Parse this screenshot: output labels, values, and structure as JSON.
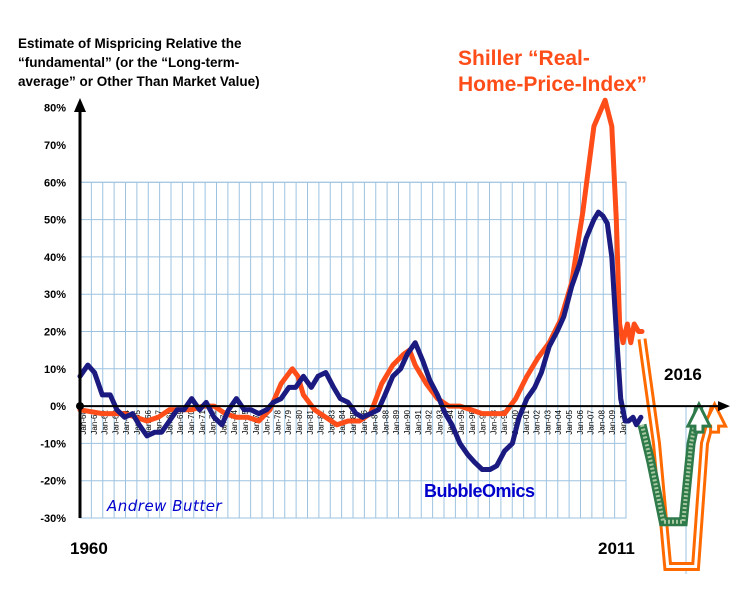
{
  "chart_data": {
    "type": "line",
    "title": "",
    "ylabel_lines": [
      "Estimate of Mispricing Relative the",
      "“fundamental” (or the “Long-term-",
      "average” or Other Than Market Value)"
    ],
    "xlabel": "",
    "x_start_label": "1960",
    "x_end_label": "2011",
    "forecast_label": "2016",
    "ylim": [
      -30,
      80
    ],
    "grid_max": 60,
    "y_ticks": [
      -30,
      -20,
      -10,
      0,
      10,
      20,
      30,
      40,
      50,
      60,
      70,
      80
    ],
    "y_tick_labels": [
      "-30%",
      "-20%",
      "-10%",
      "0%",
      "10%",
      "20%",
      "30%",
      "40%",
      "50%",
      "60%",
      "70%",
      "80%"
    ],
    "x_tick_labels": [
      "Jan-60",
      "Jan-61",
      "Jan-62",
      "Jan-63",
      "Jan-64",
      "Jan-65",
      "Jan-66",
      "Jan-67",
      "Jan-68",
      "Jan-69",
      "Jan-70",
      "Jan-71",
      "Jan-72",
      "Jan-73",
      "Jan-74",
      "Jan-75",
      "Jan-76",
      "Jan-77",
      "Jan-78",
      "Jan-79",
      "Jan-80",
      "Jan-81",
      "Jan-82",
      "Jan-83",
      "Jan-84",
      "Jan-85",
      "Jan-86",
      "Jan-87",
      "Jan-88",
      "Jan-89",
      "Jan-90",
      "Jan-91",
      "Jan-92",
      "Jan-93",
      "Jan-94",
      "Jan-95",
      "Jan-96",
      "Jan-97",
      "Jan-98",
      "Jan-99",
      "Jan-00",
      "Jan-01",
      "Jan-02",
      "Jan-03",
      "Jan-04",
      "Jan-05",
      "Jan-06",
      "Jan-07",
      "Jan-08",
      "Jan-09",
      "Jan-10"
    ],
    "xlim": [
      1960,
      2018
    ],
    "series": [
      {
        "name": "Shiller “Real-Home-Price-Index”",
        "color": "#ff4d1a",
        "x": [
          1960,
          1962,
          1964,
          1965,
          1966,
          1967,
          1968,
          1969,
          1970,
          1971,
          1972,
          1973,
          1974,
          1975,
          1976,
          1977,
          1978,
          1979,
          1979.5,
          1980,
          1981,
          1982,
          1983,
          1984,
          1985,
          1986,
          1987,
          1988,
          1989,
          1989.5,
          1990,
          1991,
          1992,
          1993,
          1994,
          1995,
          1996,
          1997,
          1998,
          1999,
          2000,
          2001,
          2002,
          2003,
          2004,
          2005,
          2006,
          2007,
          2007.6,
          2008,
          2008.3,
          2008.6,
          2009,
          2009.3,
          2009.6,
          2010,
          2010.3
        ],
        "y": [
          -1,
          -2,
          -2,
          -3,
          -4,
          -3,
          -1,
          -1,
          -1,
          0,
          0,
          -2,
          -3,
          -3,
          -4,
          -1,
          6,
          10,
          8,
          3,
          -1,
          -3,
          -5,
          -4,
          -4,
          -2,
          6,
          11,
          14,
          15,
          11,
          6,
          2,
          0,
          0,
          -1,
          -2,
          -2,
          -2,
          2,
          8,
          13,
          17,
          23,
          33,
          52,
          75,
          82,
          75,
          50,
          22,
          17,
          22,
          17,
          22,
          20,
          20
        ]
      },
      {
        "name": "BubbleOmics",
        "color": "#1a1a80",
        "x": [
          1960,
          1960.7,
          1961.3,
          1962,
          1962.7,
          1963.3,
          1964,
          1964.7,
          1965.3,
          1966,
          1966.7,
          1967.3,
          1968,
          1968.7,
          1969.3,
          1970,
          1970.7,
          1971.3,
          1972,
          1972.7,
          1973.3,
          1974,
          1974.7,
          1975.3,
          1976,
          1976.7,
          1977.3,
          1978,
          1978.7,
          1979.3,
          1980,
          1980.7,
          1981.3,
          1982,
          1982.7,
          1983.3,
          1984,
          1984.7,
          1985.3,
          1986,
          1986.7,
          1987.3,
          1988,
          1988.7,
          1989.3,
          1990,
          1990.7,
          1991.3,
          1992,
          1992.7,
          1993.3,
          1994,
          1994.7,
          1995.3,
          1996,
          1996.7,
          1997.3,
          1998,
          1998.7,
          1999.3,
          2000,
          2000.7,
          2001.3,
          2002,
          2002.7,
          2003.3,
          2004,
          2004.7,
          2005.3,
          2006,
          2006.4,
          2006.8,
          2007.2,
          2007.6,
          2008,
          2008.4,
          2008.8,
          2009.1,
          2009.5,
          2009.8,
          2010.2
        ],
        "y": [
          8,
          11,
          9,
          3,
          3,
          -1,
          -3,
          -2,
          -5,
          -8,
          -7,
          -7,
          -4,
          -1,
          -1,
          2,
          -1,
          1,
          -3,
          -5,
          -1,
          2,
          -1,
          -1,
          -2,
          -1,
          1,
          2,
          5,
          5,
          8,
          5,
          8,
          9,
          5,
          2,
          1,
          -2,
          -3,
          -2,
          -1,
          3,
          8,
          10,
          14,
          17,
          12,
          7,
          3,
          -2,
          -5,
          -10,
          -13,
          -15,
          -17,
          -17,
          -16,
          -12,
          -10,
          -3,
          2,
          5,
          9,
          16,
          20,
          24,
          32,
          38,
          45,
          50,
          52,
          51,
          49,
          40,
          20,
          2,
          -4,
          -4,
          -3,
          -5,
          -3
        ]
      }
    ],
    "projections": [
      {
        "name": "Shiller projection arrow",
        "color": "#ff7a1a",
        "x": [
          2010.3,
          2011.6,
          2012.6,
          2015.1,
          2015.9,
          2016.8
        ],
        "y": [
          18,
          -10,
          -43,
          -43,
          -10,
          0
        ]
      },
      {
        "name": "BubbleOmics projection arrow",
        "color": "#4a8a5a",
        "x": [
          2010.3,
          2011.1,
          2012.2,
          2014.0,
          2014.7,
          2015.4
        ],
        "y": [
          -5,
          -15,
          -31,
          -31,
          -10,
          0
        ]
      }
    ],
    "annotations": {
      "shiller_label_lines": [
        "Shiller “Real-",
        "Home-Price-Index”"
      ],
      "bubble_label": "BubbleOmics",
      "author_label": "Andrew Butter"
    }
  }
}
